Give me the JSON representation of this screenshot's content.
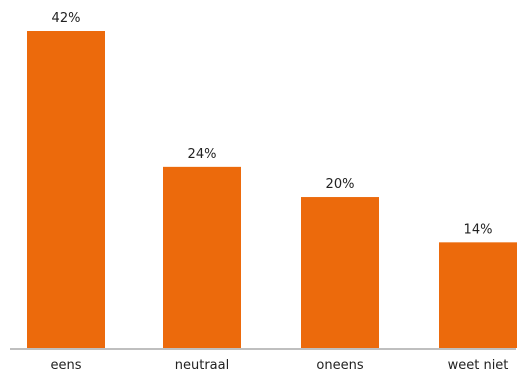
{
  "chart_data": {
    "type": "bar",
    "categories": [
      "eens",
      "neutraal",
      "oneens",
      "weet niet"
    ],
    "values": [
      42,
      24,
      20,
      14
    ],
    "value_labels": [
      "42%",
      "24%",
      "20%",
      "14%"
    ],
    "title": "",
    "xlabel": "",
    "ylabel": "",
    "ylim": [
      0,
      42
    ],
    "grid": false,
    "legend": "none",
    "bar_color": "#ec6a0c",
    "axis_color": "#bfbfbf"
  }
}
